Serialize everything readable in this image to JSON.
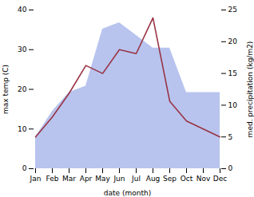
{
  "chart_data": {
    "type": "line",
    "categories": [
      "Jan",
      "Feb",
      "Mar",
      "Apr",
      "May",
      "Jun",
      "Jul",
      "Aug",
      "Sep",
      "Oct",
      "Nov",
      "Dec"
    ],
    "xlabel": "date (month)",
    "ylabel": "max temp (C)",
    "y2label": "med. precipitation (kg/m2)",
    "series": [
      {
        "type": "area",
        "axis": "y2",
        "color": "#b8c4ee",
        "values": [
          5,
          9,
          12,
          13,
          22,
          23,
          21,
          19,
          19,
          12,
          12,
          12
        ]
      },
      {
        "type": "line",
        "color": "#993344",
        "values": [
          8,
          13,
          19,
          26,
          24,
          30,
          29,
          38,
          17,
          12,
          10,
          8
        ]
      }
    ],
    "ylim": [
      0,
      40
    ],
    "yticks": [
      0,
      10,
      20,
      30,
      40
    ],
    "y2lim": [
      0,
      25
    ],
    "y2ticks": [
      0,
      5,
      10,
      15,
      20,
      25
    ],
    "grid": false
  }
}
